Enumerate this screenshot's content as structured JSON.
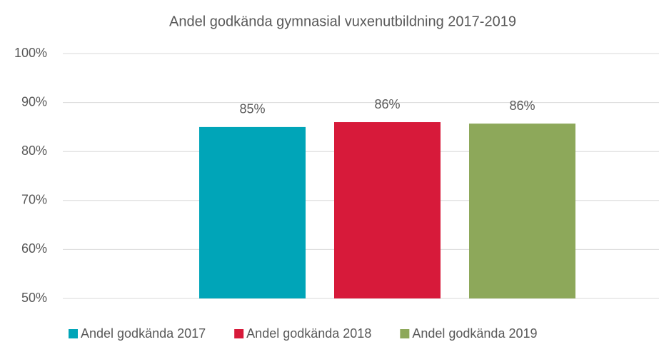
{
  "chart_data": {
    "type": "bar",
    "title": "Andel godkända gymnasial vuxenutbildning 2017-2019",
    "categories": [
      null
    ],
    "series": [
      {
        "name": "Andel godkända 2017",
        "color": "#00a5b8",
        "values": [
          85
        ],
        "value_labels": [
          "85%"
        ]
      },
      {
        "name": "Andel godkända 2018",
        "color": "#d71a3a",
        "values": [
          86
        ],
        "value_labels": [
          "86%"
        ]
      },
      {
        "name": "Andel godkända 2019",
        "color": "#8da85a",
        "values": [
          85.7
        ],
        "value_labels": [
          "86%"
        ]
      }
    ],
    "ylim": [
      50,
      100
    ],
    "yticks": [
      {
        "value": 50,
        "label": "50%"
      },
      {
        "value": 60,
        "label": "60%"
      },
      {
        "value": 70,
        "label": "70%"
      },
      {
        "value": 80,
        "label": "80%"
      },
      {
        "value": 90,
        "label": "90%"
      },
      {
        "value": 100,
        "label": "100%"
      }
    ],
    "grid": true,
    "legend": "bottom"
  }
}
